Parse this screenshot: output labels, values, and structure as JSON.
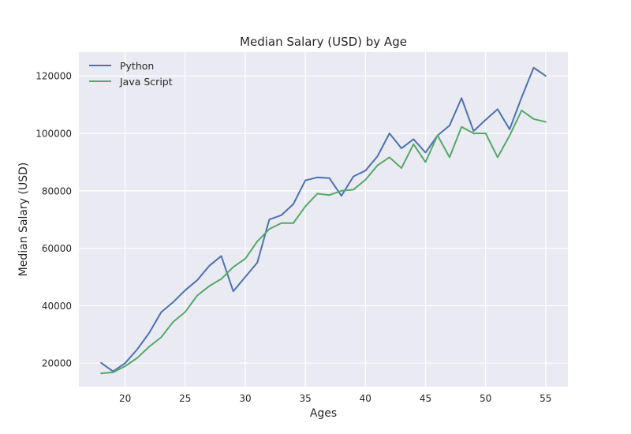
{
  "chart_data": {
    "type": "line",
    "title": "Median Salary (USD) by Age",
    "xlabel": "Ages",
    "ylabel": "Median Salary (USD)",
    "xlim": [
      16.15,
      56.85
    ],
    "ylim": [
      11800,
      128300
    ],
    "xticks": [
      20,
      25,
      30,
      35,
      40,
      45,
      50,
      55
    ],
    "yticks": [
      20000,
      40000,
      60000,
      80000,
      100000,
      120000
    ],
    "grid": true,
    "legend_position": "top-left",
    "x": [
      18,
      19,
      20,
      21,
      22,
      23,
      24,
      25,
      26,
      27,
      28,
      29,
      30,
      31,
      32,
      33,
      34,
      35,
      36,
      37,
      38,
      39,
      40,
      41,
      42,
      43,
      44,
      45,
      46,
      47,
      48,
      49,
      50,
      51,
      52,
      53,
      54,
      55
    ],
    "series": [
      {
        "name": "Python",
        "color": "#4c72b0",
        "values": [
          20046,
          17100,
          20000,
          24744,
          30500,
          37732,
          41247,
          45372,
          48876,
          53850,
          57287,
          45000,
          50000,
          55000,
          70000,
          71496,
          75370,
          83640,
          84666,
          84392,
          78254,
          85000,
          87038,
          91991,
          100000,
          94796,
          97962,
          93302,
          99240,
          102736,
          112285,
          100771,
          104708,
          108423,
          101407,
          112542,
          122870,
          120000
        ]
      },
      {
        "name": "Java Script",
        "color": "#55a868",
        "values": [
          16446,
          16791,
          18942,
          21780,
          25704,
          29000,
          34372,
          37810,
          43515,
          46823,
          49293,
          53437,
          56373,
          62375,
          66674,
          68745,
          68746,
          74583,
          79000,
          78508,
          79996,
          80403,
          83820,
          88833,
          91660,
          87892,
          96243,
          90000,
          99313,
          91660,
          102264,
          100000,
          100000,
          91660,
          99240,
          108000,
          105000,
          104000
        ]
      }
    ]
  }
}
